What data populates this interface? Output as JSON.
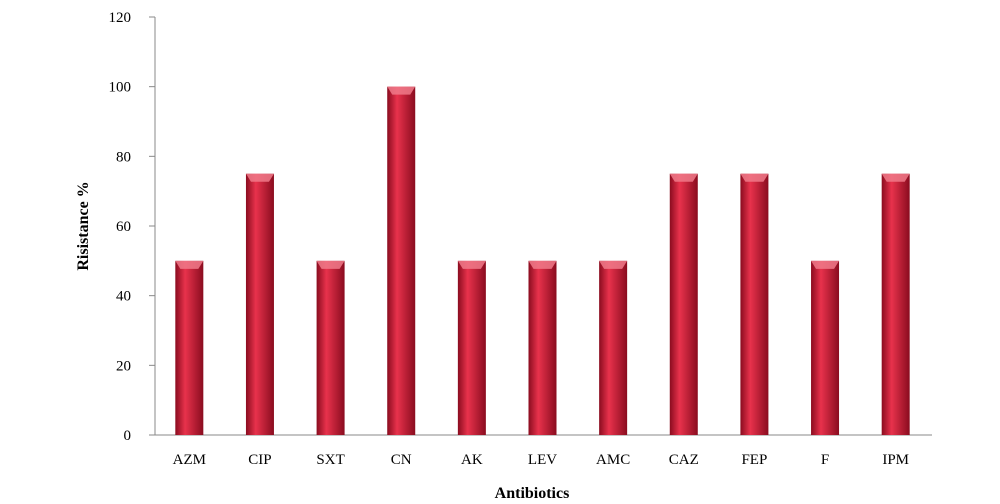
{
  "chart_data": {
    "type": "bar",
    "categories": [
      "AZM",
      "CIP",
      "SXT",
      "CN",
      "AK",
      "LEV",
      "AMC",
      "CAZ",
      "FEP",
      "F",
      "IPM"
    ],
    "values": [
      50,
      75,
      50,
      100,
      50,
      50,
      50,
      75,
      75,
      50,
      75
    ],
    "xlabel": "Antibiotics",
    "ylabel": "Risistance %",
    "ylim": [
      0,
      120
    ],
    "yticks": [
      0,
      20,
      40,
      60,
      80,
      100,
      120
    ],
    "grid": false,
    "legend": "none",
    "colors": {
      "bar_light": "#e8324c",
      "bar_mid": "#d01a36",
      "bar_dark": "#8a0c1f",
      "bar_top": "#f07a8a",
      "axis": "#888888"
    }
  }
}
